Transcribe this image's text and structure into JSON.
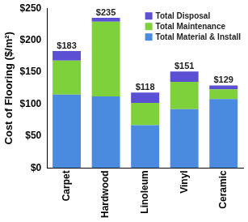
{
  "chart_data": {
    "type": "bar",
    "stacked": true,
    "y_label": "Cost of Flooring ($/m²)",
    "categories": [
      "Carpet",
      "Hardwood",
      "Linoleum",
      "Vinyl",
      "Ceramic"
    ],
    "series": [
      {
        "name": "Total Material & Install",
        "color": "#4a8be0",
        "values": [
          115,
          112,
          67,
          92,
          108
        ]
      },
      {
        "name": "Total Maintenance",
        "color": "#7fd13b",
        "values": [
          53,
          117,
          35,
          43,
          15
        ]
      },
      {
        "name": "Total Disposal",
        "color": "#5b4fd3",
        "values": [
          15,
          6,
          16,
          16,
          6
        ]
      }
    ],
    "totals": [
      183,
      235,
      118,
      151,
      129
    ],
    "total_labels": [
      "$183",
      "$235",
      "$118",
      "$151",
      "$129"
    ],
    "ylim": [
      0,
      250
    ],
    "yticks": [
      {
        "value": 0,
        "label": "$0"
      },
      {
        "value": 50,
        "label": "$50"
      },
      {
        "value": 100,
        "label": "$100"
      },
      {
        "value": 150,
        "label": "$150"
      },
      {
        "value": 200,
        "label": "$200"
      },
      {
        "value": 250,
        "label": "$250"
      }
    ],
    "grid": false,
    "legend": "top-right"
  }
}
